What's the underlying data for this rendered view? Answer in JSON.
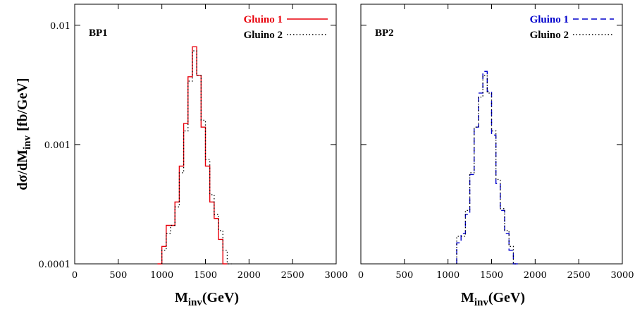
{
  "chart_data": [
    {
      "type": "line",
      "panel_label": "BP1",
      "xlabel": "M",
      "xlabel_sub": "inv",
      "xlabel_unit": "(GeV)",
      "ylabel_main": "dσ/dM",
      "ylabel_sub": "inv",
      "ylabel_unit": "[fb/GeV]",
      "xlim": [
        0,
        3000
      ],
      "ylim": [
        0.0001,
        0.015
      ],
      "yscale": "log",
      "x_ticks": [
        "0",
        "500",
        "1000",
        "1500",
        "2000",
        "2500",
        "3000"
      ],
      "y_ticks": [
        "0.0001",
        "0.001",
        "0.01"
      ],
      "y_tick_values": [
        0.0001,
        0.001,
        0.01
      ],
      "legend_position": "top-right",
      "series": [
        {
          "name": "Gluino 1",
          "color": "#e8000b",
          "style": "solid",
          "step_edges": [
            950,
            1000,
            1050,
            1100,
            1150,
            1200,
            1250,
            1300,
            1350,
            1400,
            1450,
            1500,
            1550,
            1600,
            1650,
            1700,
            1750
          ],
          "values": [
            0.0001,
            0.00014,
            0.00021,
            0.00021,
            0.00033,
            0.00066,
            0.0015,
            0.0037,
            0.0066,
            0.0038,
            0.0014,
            0.00066,
            0.00033,
            0.00024,
            0.00016,
            0.0001
          ]
        },
        {
          "name": "Gluino 2",
          "color": "#000000",
          "style": "dotted",
          "step_edges": [
            1000,
            1050,
            1100,
            1150,
            1200,
            1250,
            1300,
            1350,
            1400,
            1450,
            1500,
            1550,
            1600,
            1650,
            1700,
            1750,
            1800
          ],
          "values": [
            0.00013,
            0.00018,
            0.00021,
            0.0003,
            0.00058,
            0.0013,
            0.0034,
            0.0061,
            0.0038,
            0.0016,
            0.00075,
            0.00038,
            0.00026,
            0.00019,
            0.00013,
            0.0001
          ]
        }
      ]
    },
    {
      "type": "line",
      "panel_label": "BP2",
      "xlabel": "M",
      "xlabel_sub": "inv",
      "xlabel_unit": "(GeV)",
      "xlim": [
        0,
        3000
      ],
      "ylim": [
        0.0001,
        0.015
      ],
      "yscale": "log",
      "x_ticks": [
        "0",
        "500",
        "1000",
        "1500",
        "2000",
        "2500",
        "3000"
      ],
      "y_tick_values": [
        0.0001,
        0.001,
        0.01
      ],
      "legend_position": "top-right",
      "series": [
        {
          "name": "Gluino 1",
          "color": "#0000cc",
          "style": "dashed",
          "step_edges": [
            1100,
            1150,
            1200,
            1250,
            1300,
            1350,
            1400,
            1450,
            1500,
            1550,
            1600,
            1650,
            1700,
            1750,
            1800
          ],
          "values": [
            0.00015,
            0.00018,
            0.00026,
            0.00056,
            0.0014,
            0.0027,
            0.0041,
            0.0028,
            0.0012,
            0.00047,
            0.00028,
            0.00018,
            0.00013,
            0.0001
          ]
        },
        {
          "name": "Gluino 2",
          "color": "#000000",
          "style": "dotted",
          "step_edges": [
            1100,
            1150,
            1200,
            1250,
            1300,
            1350,
            1400,
            1450,
            1500,
            1550,
            1600,
            1650,
            1700,
            1750,
            1800
          ],
          "values": [
            0.00017,
            0.00017,
            0.00028,
            0.00058,
            0.0014,
            0.0025,
            0.0038,
            0.0027,
            0.0013,
            0.00051,
            0.00029,
            0.00019,
            0.00014,
            0.0001
          ]
        }
      ]
    }
  ]
}
